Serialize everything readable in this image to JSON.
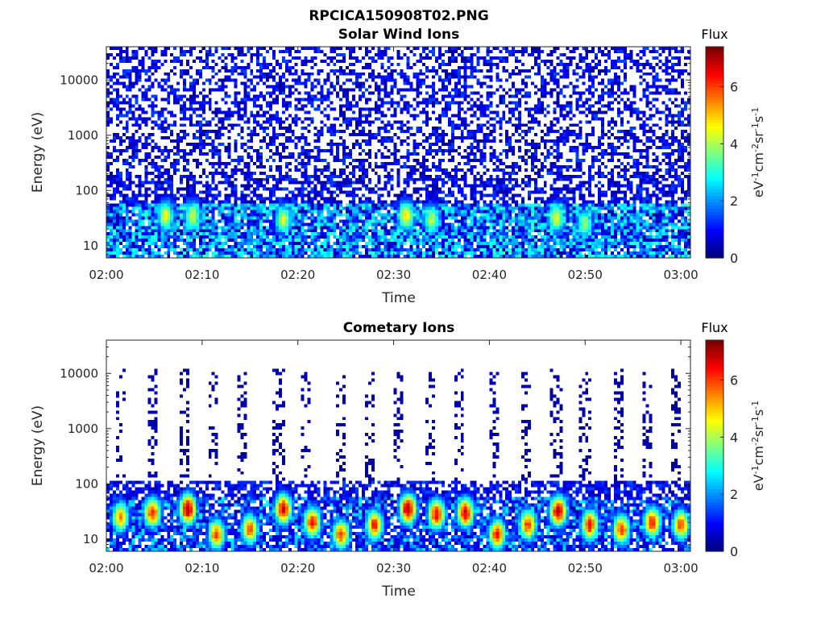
{
  "figure_title": "RPCICA150908T02.PNG",
  "colors": {
    "colormap": "jet",
    "axis": "#262626",
    "background": "#ffffff"
  },
  "chart_data": [
    {
      "type": "heatmap",
      "title": "Solar Wind Ions",
      "xlabel": "Time",
      "ylabel": "Energy (eV)",
      "x_ticks": [
        "02:00",
        "02:10",
        "02:20",
        "02:30",
        "02:40",
        "02:50",
        "03:00"
      ],
      "x_tick_minutes": [
        0,
        10,
        20,
        30,
        40,
        50,
        60
      ],
      "xlim_minutes": [
        0,
        61
      ],
      "y_scale": "log",
      "y_ticks": [
        "10",
        "100",
        "1000",
        "10000"
      ],
      "y_tick_values": [
        10,
        100,
        1000,
        10000
      ],
      "ylim": [
        6,
        40000
      ],
      "colorbar": {
        "title": "Flux",
        "label_html": "eV<tspan class=\"cb-sup\" dy=\"-6\">-1</tspan><tspan dy=\"6\">cm</tspan><tspan class=\"cb-sup\" dy=\"-6\">-2</tspan><tspan dy=\"6\">sr</tspan><tspan class=\"cb-sup\" dy=\"-6\">-1</tspan><tspan dy=\"6\">s</tspan><tspan class=\"cb-sup\" dy=\"-6\">-1</tspan>",
        "ticks": [
          "0",
          "2",
          "4",
          "6"
        ],
        "tick_values": [
          0,
          2,
          4,
          6
        ],
        "range": [
          0,
          7.4
        ],
        "colormap": "jet"
      },
      "features": {
        "scattered_low_flux_range_eV": [
          10,
          40000
        ],
        "dense_band_range_eV": [
          6,
          60
        ],
        "hot_spots": [
          {
            "minute": 6.2,
            "energy_eV": 35,
            "flux": 4.6
          },
          {
            "minute": 9.0,
            "energy_eV": 35,
            "flux": 4.3
          },
          {
            "minute": 18.5,
            "energy_eV": 30,
            "flux": 4.4
          },
          {
            "minute": 31.3,
            "energy_eV": 35,
            "flux": 4.8
          },
          {
            "minute": 34.0,
            "energy_eV": 30,
            "flux": 4.2
          },
          {
            "minute": 47.0,
            "energy_eV": 32,
            "flux": 4.5
          },
          {
            "minute": 50.0,
            "energy_eV": 25,
            "flux": 4.0
          }
        ]
      }
    },
    {
      "type": "heatmap",
      "title": "Cometary Ions",
      "xlabel": "Time",
      "ylabel": "Energy (eV)",
      "x_ticks": [
        "02:00",
        "02:10",
        "02:20",
        "02:30",
        "02:40",
        "02:50",
        "03:00"
      ],
      "x_tick_minutes": [
        0,
        10,
        20,
        30,
        40,
        50,
        60
      ],
      "xlim_minutes": [
        0,
        61
      ],
      "y_scale": "log",
      "y_ticks": [
        "10",
        "100",
        "1000",
        "10000"
      ],
      "y_tick_values": [
        10,
        100,
        1000,
        10000
      ],
      "ylim": [
        6,
        40000
      ],
      "colorbar": {
        "title": "Flux",
        "label_html": "eV<tspan class=\"cb-sup\" dy=\"-6\">-1</tspan><tspan dy=\"6\">cm</tspan><tspan class=\"cb-sup\" dy=\"-6\">-2</tspan><tspan dy=\"6\">sr</tspan><tspan class=\"cb-sup\" dy=\"-6\">-1</tspan><tspan dy=\"6\">s</tspan><tspan class=\"cb-sup\" dy=\"-6\">-1</tspan>",
        "ticks": [
          "0",
          "2",
          "4",
          "6"
        ],
        "tick_values": [
          0,
          2,
          4,
          6
        ],
        "range": [
          0,
          7.4
        ],
        "colormap": "jet"
      },
      "features": {
        "high_energy_cutoff_eV": 120,
        "burst_columns_minute": [
          1.5,
          4.8,
          8.2,
          11.2,
          14.2,
          18.0,
          20.8,
          24.5,
          27.5,
          30.5,
          33.8,
          36.8,
          40.5,
          43.8,
          47.0,
          50.0,
          53.5,
          56.5,
          59.5
        ],
        "hot_spots": [
          {
            "minute": 1.5,
            "energy_eV": 25,
            "flux": 5.5
          },
          {
            "minute": 4.8,
            "energy_eV": 30,
            "flux": 6.2
          },
          {
            "minute": 8.5,
            "energy_eV": 35,
            "flux": 7.2
          },
          {
            "minute": 11.5,
            "energy_eV": 12,
            "flux": 6.0
          },
          {
            "minute": 15.0,
            "energy_eV": 15,
            "flux": 6.0
          },
          {
            "minute": 18.5,
            "energy_eV": 35,
            "flux": 6.8
          },
          {
            "minute": 21.5,
            "energy_eV": 20,
            "flux": 6.5
          },
          {
            "minute": 24.5,
            "energy_eV": 12,
            "flux": 6.0
          },
          {
            "minute": 28.0,
            "energy_eV": 18,
            "flux": 6.4
          },
          {
            "minute": 31.5,
            "energy_eV": 35,
            "flux": 7.2
          },
          {
            "minute": 34.5,
            "energy_eV": 28,
            "flux": 6.6
          },
          {
            "minute": 37.5,
            "energy_eV": 30,
            "flux": 6.8
          },
          {
            "minute": 40.8,
            "energy_eV": 12,
            "flux": 6.3
          },
          {
            "minute": 44.0,
            "energy_eV": 18,
            "flux": 6.2
          },
          {
            "minute": 47.2,
            "energy_eV": 32,
            "flux": 7.0
          },
          {
            "minute": 50.5,
            "energy_eV": 18,
            "flux": 6.6
          },
          {
            "minute": 53.8,
            "energy_eV": 15,
            "flux": 6.2
          },
          {
            "minute": 57.0,
            "energy_eV": 20,
            "flux": 6.4
          },
          {
            "minute": 60.0,
            "energy_eV": 18,
            "flux": 6.0
          }
        ]
      }
    }
  ]
}
